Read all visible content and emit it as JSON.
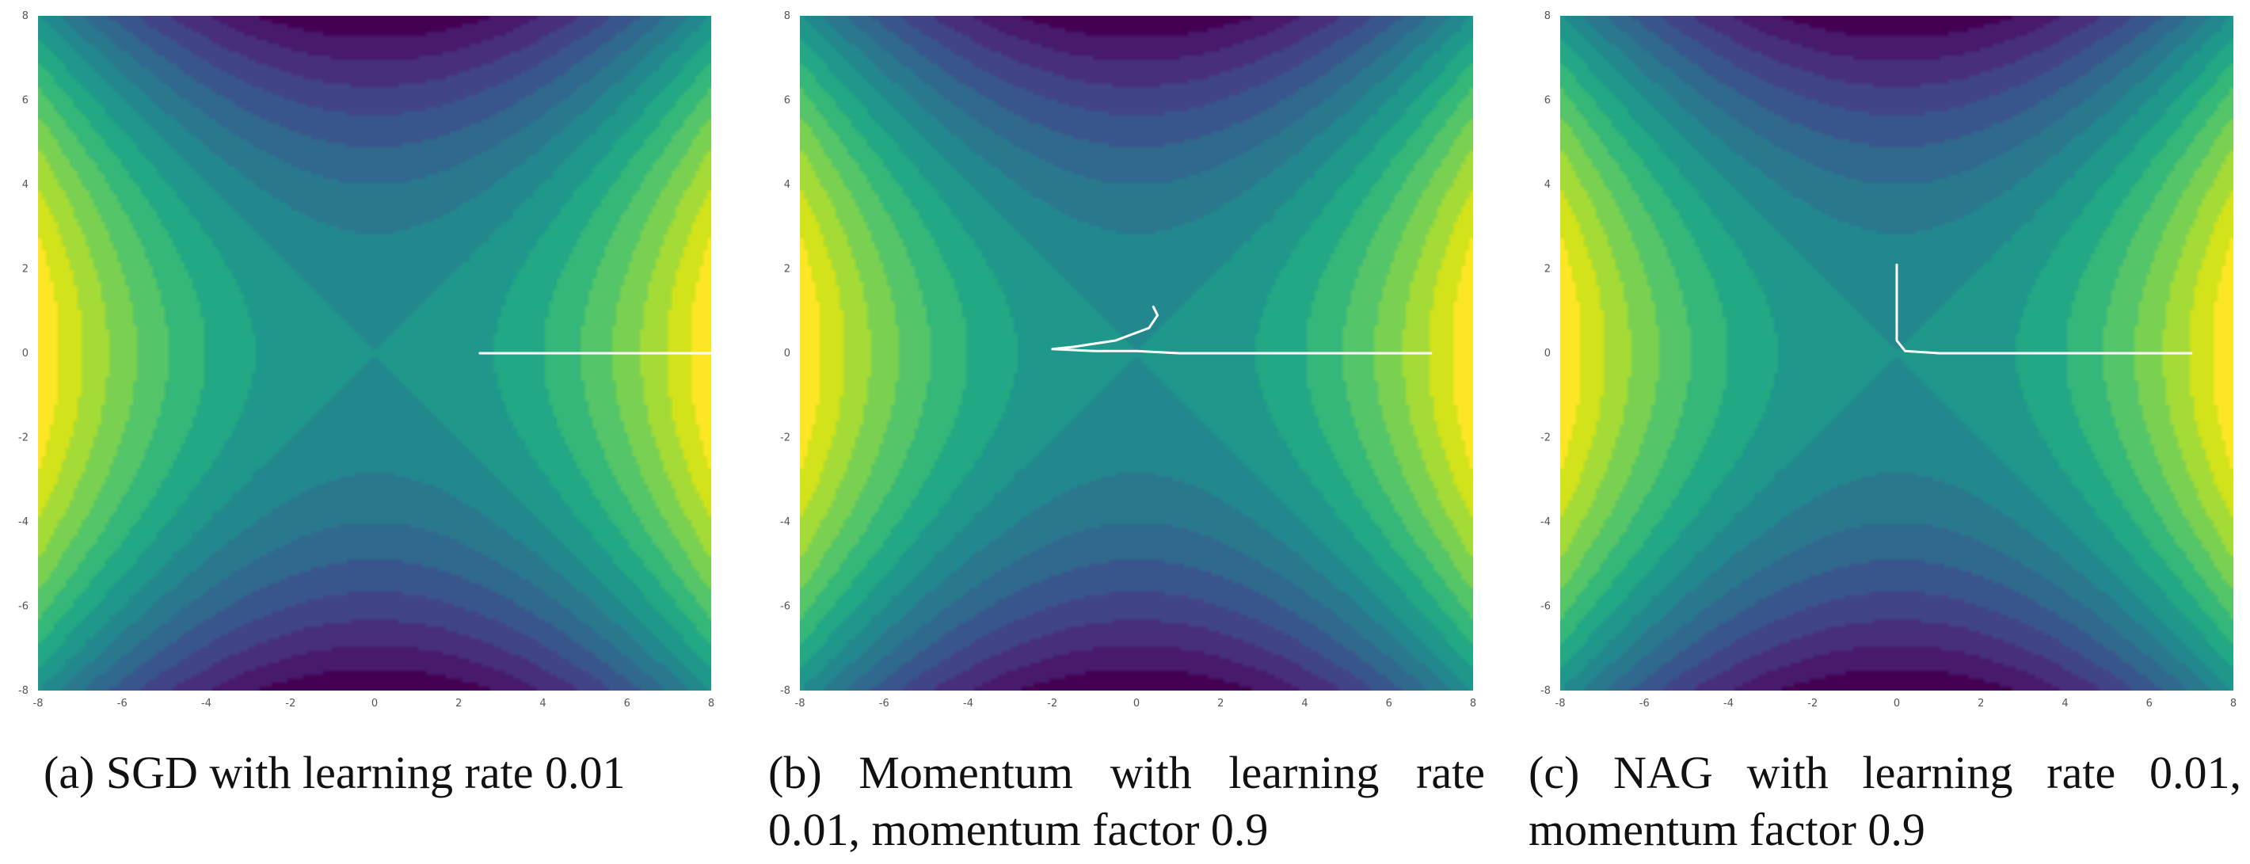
{
  "chart_data": [
    {
      "type": "contour",
      "surface": "x^2 - y^2",
      "x": [
        8,
        7.5,
        7,
        6.5,
        6,
        5.5,
        5,
        4.5,
        4,
        3.5,
        3,
        2.5
      ],
      "y": [
        0,
        0,
        0,
        0,
        0,
        0,
        0,
        0,
        0,
        0,
        0,
        0
      ],
      "xlim": [
        -8,
        8
      ],
      "ylim": [
        -8,
        8
      ],
      "xticks": [
        "-8",
        "-6",
        "-4",
        "-2",
        "0",
        "2",
        "4",
        "6",
        "8"
      ],
      "yticks": [
        "8",
        "6",
        "4",
        "2",
        "0",
        "-2",
        "-4",
        "-6",
        "-8"
      ],
      "caption": "(a) SGD with learning rate 0.01"
    },
    {
      "type": "contour",
      "surface": "x^2 - y^2",
      "x": [
        7,
        5,
        3,
        1,
        0,
        -1,
        -2,
        -1.5,
        -0.5,
        0.3,
        0.5,
        0.4
      ],
      "y": [
        0,
        0,
        0,
        0,
        0.05,
        0.05,
        0.1,
        0.15,
        0.3,
        0.6,
        0.9,
        1.1
      ],
      "xlim": [
        -8,
        8
      ],
      "ylim": [
        -8,
        8
      ],
      "xticks": [
        "-8",
        "-6",
        "-4",
        "-2",
        "0",
        "2",
        "4",
        "6",
        "8"
      ],
      "yticks": [
        "8",
        "6",
        "4",
        "2",
        "0",
        "-2",
        "-4",
        "-6",
        "-8"
      ],
      "caption": "(b) Momentum with learning rate 0.01, momentum factor 0.9"
    },
    {
      "type": "contour",
      "surface": "x^2 - y^2",
      "x": [
        7,
        5,
        3,
        1,
        0.2,
        0,
        0,
        0,
        0,
        0
      ],
      "y": [
        0,
        0,
        0,
        0,
        0.05,
        0.3,
        0.8,
        1.3,
        1.8,
        2.1
      ],
      "xlim": [
        -8,
        8
      ],
      "ylim": [
        -8,
        8
      ],
      "xticks": [
        "-8",
        "-6",
        "-4",
        "-2",
        "0",
        "2",
        "4",
        "6",
        "8"
      ],
      "yticks": [
        "8",
        "6",
        "4",
        "2",
        "0",
        "-2",
        "-4",
        "-6",
        "-8"
      ],
      "caption": "(c) NAG with learning rate 0.01, momentum factor 0.9"
    }
  ]
}
